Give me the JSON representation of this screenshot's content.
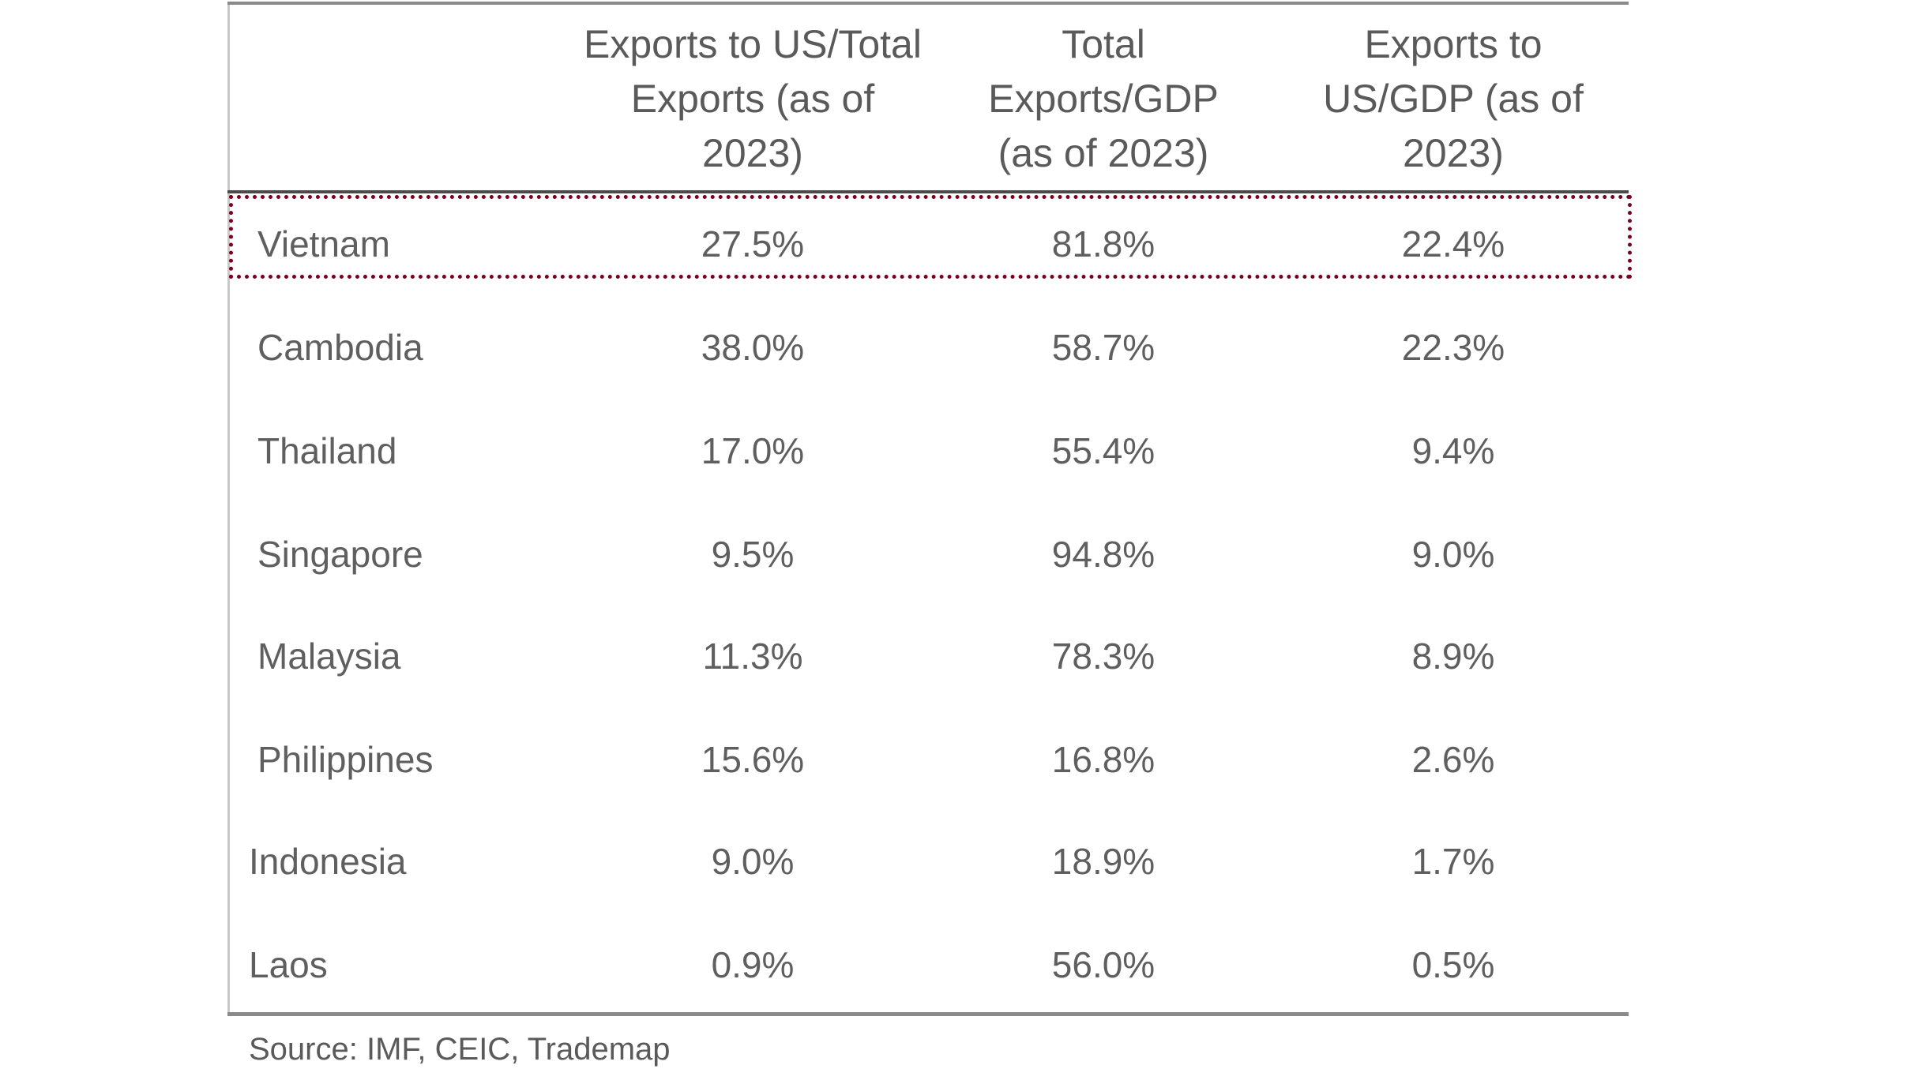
{
  "headers": [
    "",
    "Exports to US/Total Exports (as of 2023)",
    "Total Exports/GDP (as of 2023)",
    "Exports to US/GDP (as of 2023)"
  ],
  "rows": [
    {
      "country": "Vietnam",
      "us_share": "27.5%",
      "exports_gdp": "81.8%",
      "us_gdp": "22.4%"
    },
    {
      "country": "Cambodia",
      "us_share": "38.0%",
      "exports_gdp": "58.7%",
      "us_gdp": "22.3%"
    },
    {
      "country": "Thailand",
      "us_share": "17.0%",
      "exports_gdp": "55.4%",
      "us_gdp": "9.4%"
    },
    {
      "country": "Singapore",
      "us_share": "9.5%",
      "exports_gdp": "94.8%",
      "us_gdp": "9.0%"
    },
    {
      "country": "Malaysia",
      "us_share": "11.3%",
      "exports_gdp": "78.3%",
      "us_gdp": "8.9%"
    },
    {
      "country": "Philippines",
      "us_share": "15.6%",
      "exports_gdp": "16.8%",
      "us_gdp": "2.6%"
    },
    {
      "country": "Indonesia",
      "us_share": "9.0%",
      "exports_gdp": "18.9%",
      "us_gdp": "1.7%"
    },
    {
      "country": "Laos",
      "us_share": "0.9%",
      "exports_gdp": "56.0%",
      "us_gdp": "0.5%"
    }
  ],
  "highlight_color": "#7a0020",
  "source": "Source: IMF, CEIC, Trademap"
}
